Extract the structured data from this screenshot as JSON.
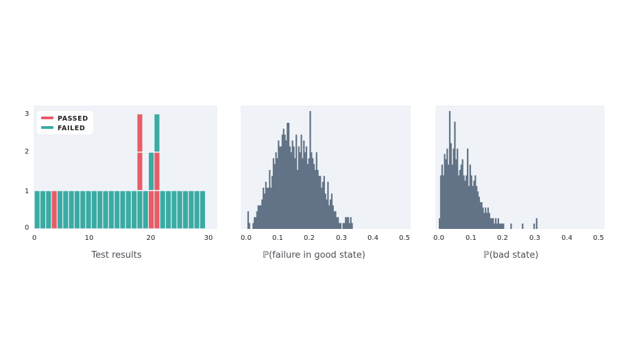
{
  "colors": {
    "panel_bg": "#eff3f7",
    "passed": "#e85c68",
    "failed": "#3aaba3",
    "hist": "#637387"
  },
  "chart_data": [
    {
      "type": "bar",
      "stacked": true,
      "xlabel": "Test results",
      "xlim": [
        0,
        31
      ],
      "ylim": [
        0,
        3
      ],
      "xticks": [
        "0",
        "10",
        "20",
        "30"
      ],
      "yticks": [
        "0",
        "1",
        "2",
        "3"
      ],
      "legend": {
        "placement": "top-left",
        "entries": [
          "PASSED",
          "FAILED"
        ]
      },
      "grid": false,
      "stacks": [
        [
          "f"
        ],
        [
          "f"
        ],
        [
          "f"
        ],
        [
          "p"
        ],
        [
          "f"
        ],
        [
          "f"
        ],
        [
          "f"
        ],
        [
          "f"
        ],
        [
          "f"
        ],
        [
          "f"
        ],
        [
          "f"
        ],
        [
          "f"
        ],
        [
          "f"
        ],
        [
          "f"
        ],
        [
          "f"
        ],
        [
          "f"
        ],
        [
          "f"
        ],
        [
          "f"
        ],
        [
          "f",
          "p",
          "p"
        ],
        [
          "f"
        ],
        [
          "p",
          "f"
        ],
        [
          "p",
          "p",
          "f"
        ],
        [
          "f"
        ],
        [
          "f"
        ],
        [
          "f"
        ],
        [
          "f"
        ],
        [
          "f"
        ],
        [
          "f"
        ],
        [
          "f"
        ],
        [
          "f"
        ]
      ]
    },
    {
      "type": "bar",
      "histogram": true,
      "xlabel": "ℙ(failure in good state)",
      "xlim": [
        0,
        0.5
      ],
      "xticks": [
        "0.0",
        "0.1",
        "0.2",
        "0.3",
        "0.4",
        "0.5"
      ],
      "bin_start": 0.0,
      "bin_width": 0.004,
      "counts": [
        0,
        3,
        1,
        0,
        0,
        1,
        2,
        2,
        3,
        4,
        4,
        4,
        5,
        7,
        6,
        8,
        7,
        7,
        10,
        7,
        9,
        12,
        11,
        13,
        12,
        15,
        14,
        14,
        16,
        17,
        16,
        15,
        18,
        18,
        14,
        13,
        15,
        14,
        12,
        16,
        10,
        14,
        13,
        16,
        12,
        15,
        13,
        14,
        11,
        12,
        20,
        13,
        12,
        11,
        10,
        13,
        10,
        9,
        9,
        7,
        8,
        9,
        6,
        5,
        8,
        4,
        5,
        6,
        4,
        3,
        3,
        2,
        2,
        1,
        1,
        0,
        1,
        1,
        2,
        2,
        2,
        1,
        2,
        1,
        0,
        0,
        0,
        0,
        0,
        0,
        0,
        0,
        0,
        0,
        0,
        0,
        0,
        0,
        0,
        0,
        0,
        0,
        0,
        0,
        0,
        0,
        0,
        0,
        0,
        0,
        0,
        0,
        0,
        0,
        0,
        0,
        0,
        0,
        0,
        0,
        0,
        0,
        0,
        0,
        0
      ]
    },
    {
      "type": "bar",
      "histogram": true,
      "xlabel": "ℙ(bad state)",
      "xlim": [
        0,
        0.5
      ],
      "xticks": [
        "0.0",
        "0.1",
        "0.2",
        "0.3",
        "0.4",
        "0.5"
      ],
      "bin_start": 0.0,
      "bin_width": 0.004,
      "counts": [
        2,
        10,
        12,
        10,
        14,
        13,
        15,
        12,
        22,
        16,
        12,
        15,
        20,
        13,
        15,
        10,
        11,
        12,
        13,
        10,
        9,
        10,
        15,
        8,
        12,
        10,
        8,
        9,
        10,
        8,
        7,
        6,
        5,
        5,
        4,
        3,
        4,
        3,
        4,
        3,
        2,
        2,
        2,
        1,
        2,
        1,
        2,
        1,
        1,
        1,
        1,
        0,
        0,
        0,
        0,
        0,
        1,
        0,
        0,
        0,
        0,
        0,
        0,
        0,
        0,
        1,
        0,
        0,
        0,
        0,
        0,
        0,
        0,
        0,
        1,
        0,
        2,
        0,
        0,
        0,
        0,
        0,
        0,
        0,
        0,
        0,
        0,
        0,
        0,
        0,
        0,
        0,
        0,
        0,
        0,
        0,
        0,
        0,
        0,
        0,
        0,
        0,
        0,
        0,
        0,
        0,
        0,
        0,
        0,
        0,
        0,
        0,
        0,
        0,
        0,
        0,
        0,
        0,
        0,
        0,
        0,
        0,
        0,
        0,
        0
      ]
    }
  ]
}
